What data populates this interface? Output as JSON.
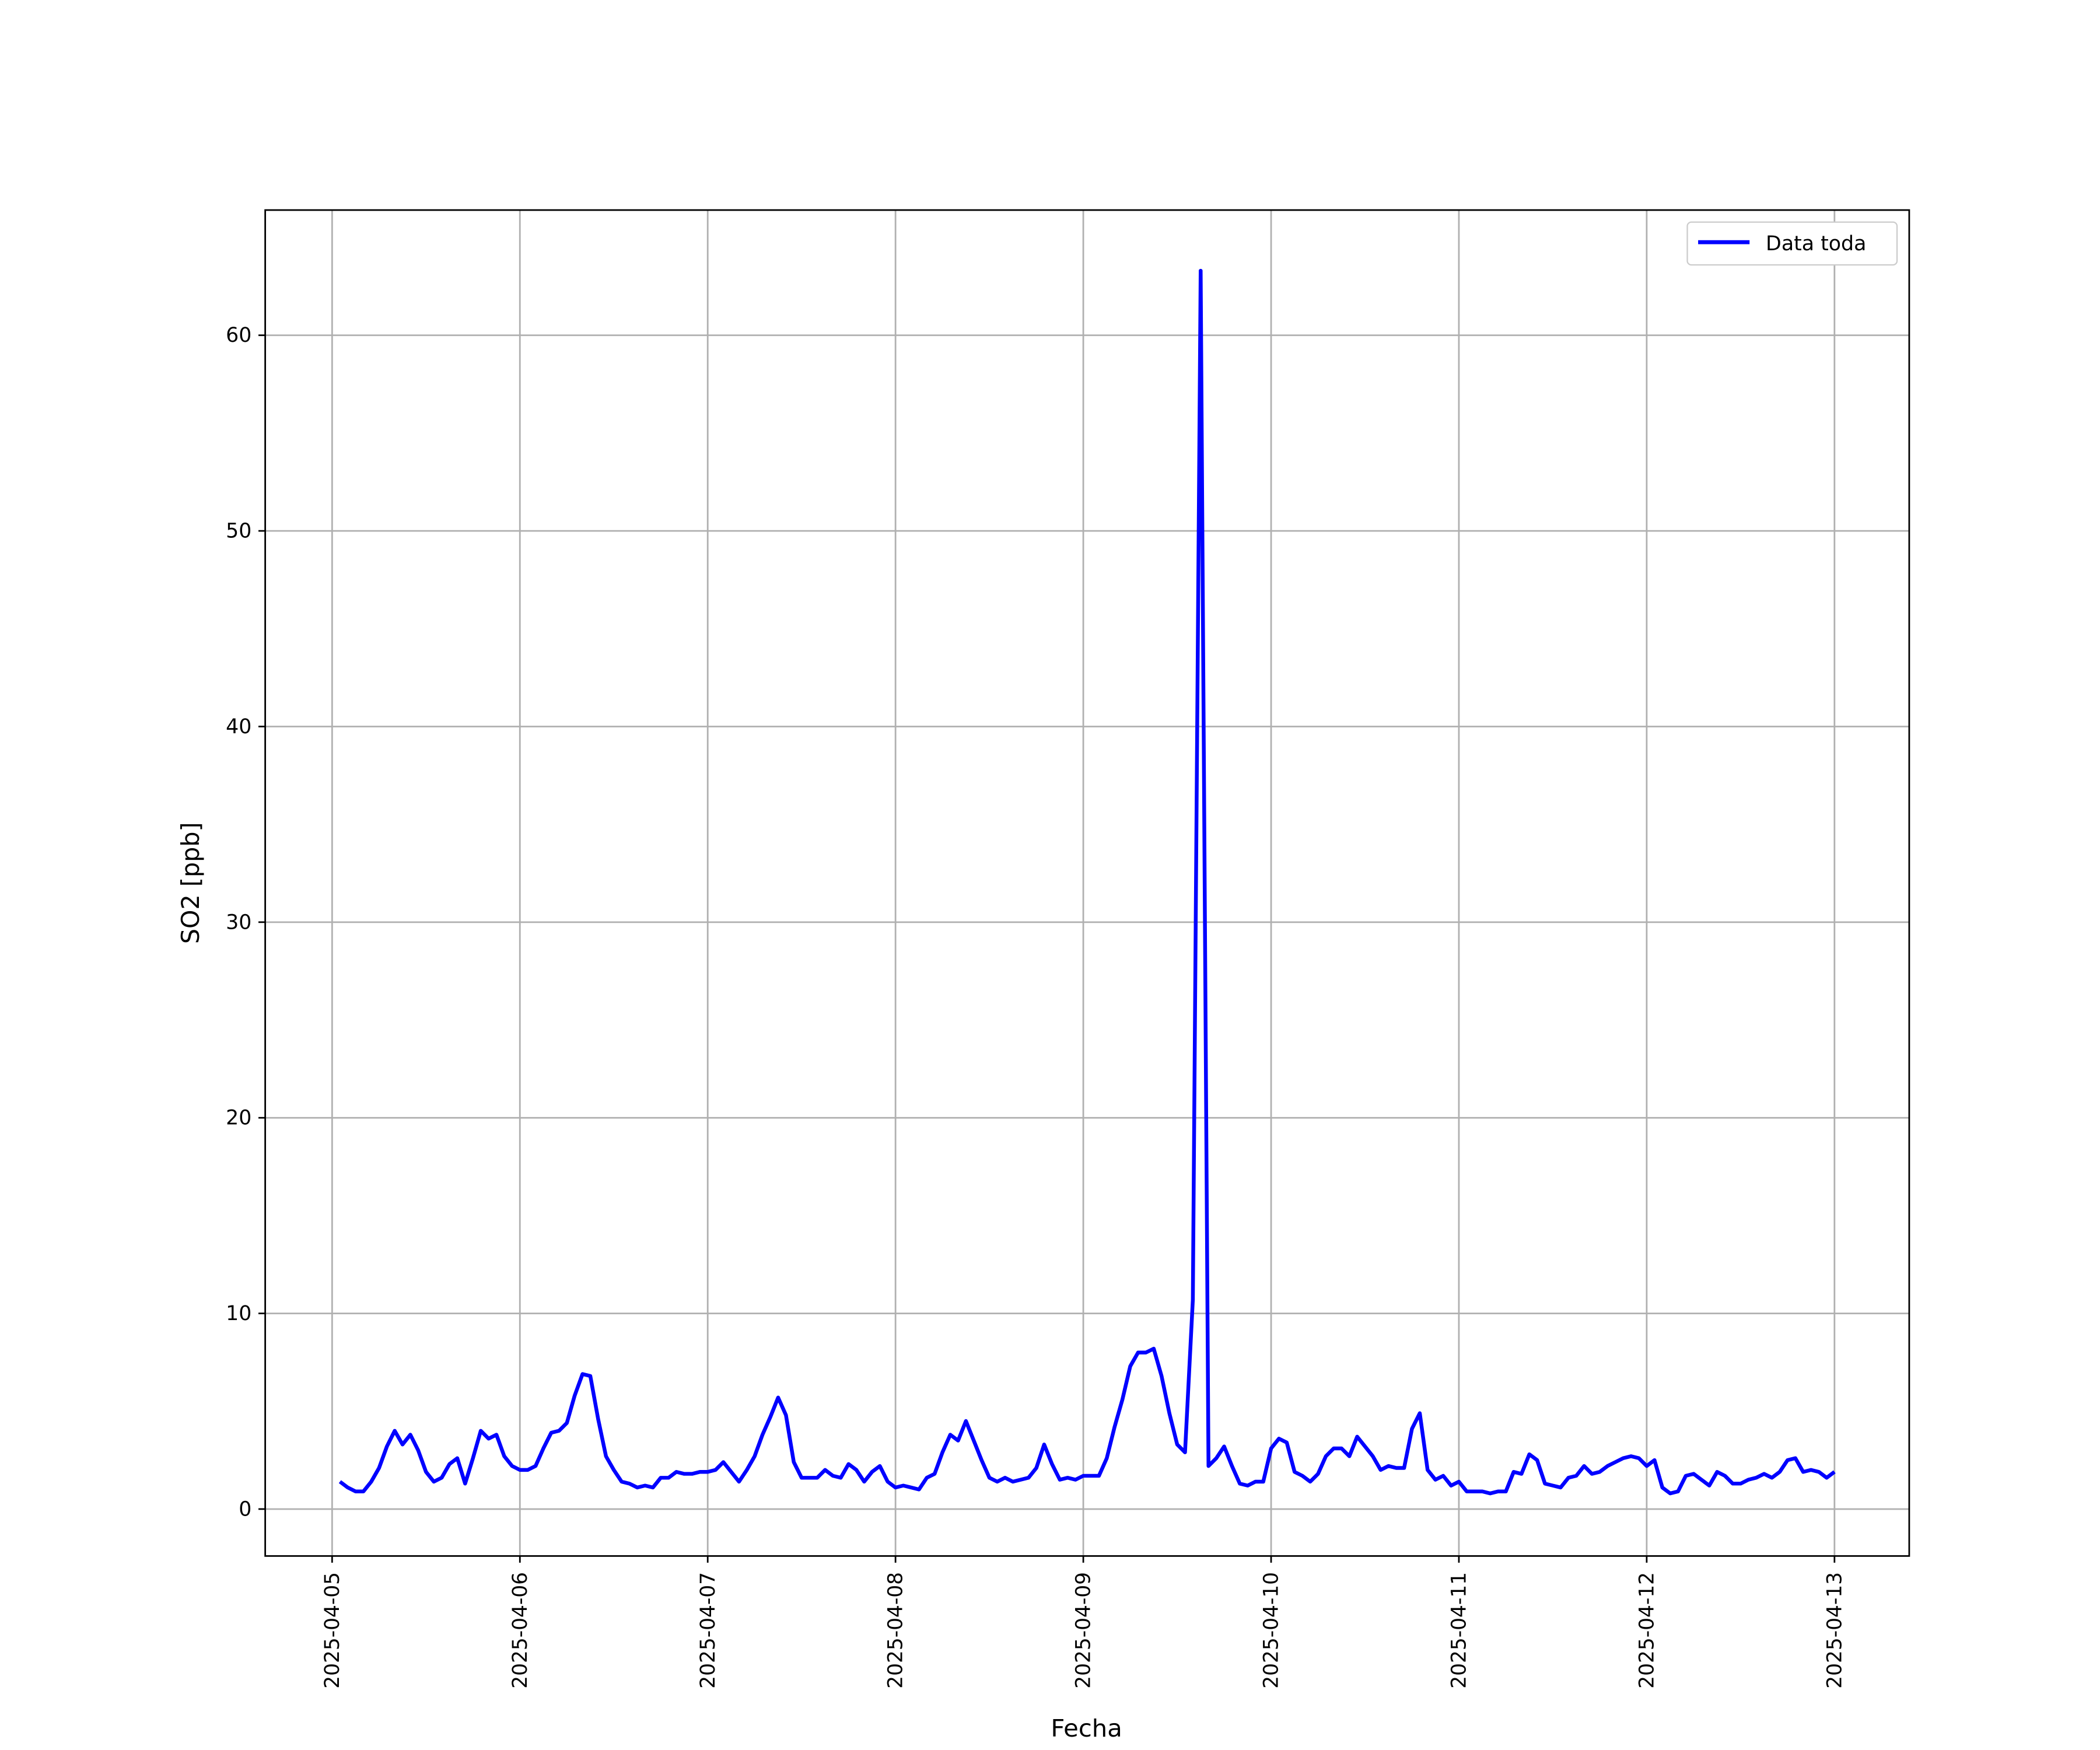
{
  "chart_data": {
    "type": "line",
    "xlabel": "Fecha",
    "ylabel": "SO2 [ppb]",
    "x": [
      "2025-04-05 01:00",
      "2025-04-05 02:00",
      "2025-04-05 03:00",
      "2025-04-05 04:00",
      "2025-04-05 05:00",
      "2025-04-05 06:00",
      "2025-04-05 07:00",
      "2025-04-05 08:00",
      "2025-04-05 09:00",
      "2025-04-05 10:00",
      "2025-04-05 11:00",
      "2025-04-05 12:00",
      "2025-04-05 13:00",
      "2025-04-05 14:00",
      "2025-04-05 15:00",
      "2025-04-05 16:00",
      "2025-04-05 17:00",
      "2025-04-05 18:00",
      "2025-04-05 19:00",
      "2025-04-05 20:00",
      "2025-04-05 21:00",
      "2025-04-05 22:00",
      "2025-04-05 23:00",
      "2025-04-06 00:00",
      "2025-04-06 01:00",
      "2025-04-06 02:00",
      "2025-04-06 03:00",
      "2025-04-06 04:00",
      "2025-04-06 05:00",
      "2025-04-06 06:00",
      "2025-04-06 07:00",
      "2025-04-06 08:00",
      "2025-04-06 09:00",
      "2025-04-06 10:00",
      "2025-04-06 11:00",
      "2025-04-06 12:00",
      "2025-04-06 13:00",
      "2025-04-06 14:00",
      "2025-04-06 15:00",
      "2025-04-06 16:00",
      "2025-04-06 17:00",
      "2025-04-06 18:00",
      "2025-04-06 19:00",
      "2025-04-06 20:00",
      "2025-04-06 21:00",
      "2025-04-06 22:00",
      "2025-04-06 23:00",
      "2025-04-07 00:00",
      "2025-04-07 01:00",
      "2025-04-07 02:00",
      "2025-04-07 03:00",
      "2025-04-07 04:00",
      "2025-04-07 05:00",
      "2025-04-07 06:00",
      "2025-04-07 07:00",
      "2025-04-07 08:00",
      "2025-04-07 09:00",
      "2025-04-07 10:00",
      "2025-04-07 11:00",
      "2025-04-07 12:00",
      "2025-04-07 13:00",
      "2025-04-07 14:00",
      "2025-04-07 15:00",
      "2025-04-07 16:00",
      "2025-04-07 17:00",
      "2025-04-07 18:00",
      "2025-04-07 19:00",
      "2025-04-07 20:00",
      "2025-04-07 21:00",
      "2025-04-07 22:00",
      "2025-04-07 23:00",
      "2025-04-08 00:00",
      "2025-04-08 01:00",
      "2025-04-08 02:00",
      "2025-04-08 03:00",
      "2025-04-08 04:00",
      "2025-04-08 05:00",
      "2025-04-08 06:00",
      "2025-04-08 07:00",
      "2025-04-08 08:00",
      "2025-04-08 09:00",
      "2025-04-08 10:00",
      "2025-04-08 11:00",
      "2025-04-08 12:00",
      "2025-04-08 13:00",
      "2025-04-08 14:00",
      "2025-04-08 15:00",
      "2025-04-08 16:00",
      "2025-04-08 17:00",
      "2025-04-08 18:00",
      "2025-04-08 19:00",
      "2025-04-08 20:00",
      "2025-04-08 21:00",
      "2025-04-08 22:00",
      "2025-04-08 23:00",
      "2025-04-09 00:00",
      "2025-04-09 01:00",
      "2025-04-09 02:00",
      "2025-04-09 03:00",
      "2025-04-09 04:00",
      "2025-04-09 05:00",
      "2025-04-09 06:00",
      "2025-04-09 07:00",
      "2025-04-09 08:00",
      "2025-04-09 09:00",
      "2025-04-09 10:00",
      "2025-04-09 11:00",
      "2025-04-09 12:00",
      "2025-04-09 13:00",
      "2025-04-09 14:00",
      "2025-04-09 15:00",
      "2025-04-09 16:00",
      "2025-04-09 17:00",
      "2025-04-09 18:00",
      "2025-04-09 19:00",
      "2025-04-09 20:00",
      "2025-04-09 21:00",
      "2025-04-09 22:00",
      "2025-04-09 23:00",
      "2025-04-10 00:00",
      "2025-04-10 01:00",
      "2025-04-10 02:00",
      "2025-04-10 03:00",
      "2025-04-10 04:00",
      "2025-04-10 05:00",
      "2025-04-10 06:00",
      "2025-04-10 07:00",
      "2025-04-10 08:00",
      "2025-04-10 09:00",
      "2025-04-10 10:00",
      "2025-04-10 11:00",
      "2025-04-10 12:00",
      "2025-04-10 13:00",
      "2025-04-10 14:00",
      "2025-04-10 15:00",
      "2025-04-10 16:00",
      "2025-04-10 17:00",
      "2025-04-10 18:00",
      "2025-04-10 19:00",
      "2025-04-10 20:00",
      "2025-04-10 21:00",
      "2025-04-10 22:00",
      "2025-04-10 23:00",
      "2025-04-11 00:00",
      "2025-04-11 01:00",
      "2025-04-11 02:00",
      "2025-04-11 03:00",
      "2025-04-11 04:00",
      "2025-04-11 05:00",
      "2025-04-11 06:00",
      "2025-04-11 07:00",
      "2025-04-11 08:00",
      "2025-04-11 09:00",
      "2025-04-11 10:00",
      "2025-04-11 11:00",
      "2025-04-11 12:00",
      "2025-04-11 13:00",
      "2025-04-11 14:00",
      "2025-04-11 15:00",
      "2025-04-11 16:00",
      "2025-04-11 17:00",
      "2025-04-11 18:00",
      "2025-04-11 19:00",
      "2025-04-11 20:00",
      "2025-04-11 21:00",
      "2025-04-11 22:00",
      "2025-04-11 23:00",
      "2025-04-12 00:00",
      "2025-04-12 01:00",
      "2025-04-12 02:00",
      "2025-04-12 03:00",
      "2025-04-12 04:00",
      "2025-04-12 05:00",
      "2025-04-12 06:00",
      "2025-04-12 07:00",
      "2025-04-12 08:00",
      "2025-04-12 09:00",
      "2025-04-12 10:00",
      "2025-04-12 11:00",
      "2025-04-12 12:00",
      "2025-04-12 13:00",
      "2025-04-12 14:00",
      "2025-04-12 15:00",
      "2025-04-12 16:00",
      "2025-04-12 17:00",
      "2025-04-12 18:00",
      "2025-04-12 19:00",
      "2025-04-12 20:00",
      "2025-04-12 21:00",
      "2025-04-12 22:00",
      "2025-04-12 23:00",
      "2025-04-13 00:00"
    ],
    "series": [
      {
        "name": "Data toda",
        "color": "#0000ff",
        "values": [
          1.4,
          1.1,
          0.9,
          0.9,
          1.4,
          2.1,
          3.2,
          4.0,
          3.3,
          3.8,
          3.0,
          1.9,
          1.4,
          1.6,
          2.3,
          2.6,
          1.3,
          2.6,
          4.0,
          3.6,
          3.8,
          2.7,
          2.2,
          2.0,
          2.0,
          2.2,
          3.1,
          3.9,
          4.0,
          4.4,
          5.8,
          6.9,
          6.8,
          4.6,
          2.7,
          2.0,
          1.4,
          1.3,
          1.1,
          1.2,
          1.1,
          1.6,
          1.6,
          1.9,
          1.8,
          1.8,
          1.9,
          1.9,
          2.0,
          2.4,
          1.9,
          1.4,
          2.0,
          2.7,
          3.8,
          4.7,
          5.7,
          4.8,
          2.4,
          1.6,
          1.6,
          1.6,
          2.0,
          1.7,
          1.6,
          2.3,
          2.0,
          1.4,
          1.9,
          2.2,
          1.4,
          1.1,
          1.2,
          1.1,
          1.0,
          1.6,
          1.8,
          2.9,
          3.8,
          3.5,
          4.5,
          3.5,
          2.5,
          1.6,
          1.4,
          1.6,
          1.4,
          1.5,
          1.6,
          2.1,
          3.3,
          2.3,
          1.5,
          1.6,
          1.5,
          1.7,
          1.7,
          1.7,
          2.6,
          4.2,
          5.6,
          7.3,
          8.0,
          8.0,
          8.2,
          6.8,
          4.9,
          3.3,
          2.9,
          10.7,
          63.3,
          2.2,
          2.6,
          3.2,
          2.2,
          1.3,
          1.2,
          1.4,
          1.4,
          3.1,
          3.6,
          3.4,
          1.9,
          1.7,
          1.4,
          1.8,
          2.7,
          3.1,
          3.1,
          2.7,
          3.7,
          3.2,
          2.7,
          2.0,
          2.2,
          2.1,
          2.1,
          4.1,
          4.9,
          2.0,
          1.5,
          1.7,
          1.2,
          1.4,
          0.9,
          0.9,
          0.9,
          0.8,
          0.9,
          0.9,
          1.9,
          1.8,
          2.8,
          2.5,
          1.3,
          1.2,
          1.1,
          1.6,
          1.7,
          2.2,
          1.8,
          1.9,
          2.2,
          2.4,
          2.6,
          2.7,
          2.6,
          2.2,
          2.5,
          1.1,
          0.8,
          0.9,
          1.7,
          1.8,
          1.5,
          1.2,
          1.9,
          1.7,
          1.3,
          1.3,
          1.5,
          1.6,
          1.8,
          1.6,
          1.9,
          2.5,
          2.6,
          1.9,
          2.0,
          1.9,
          1.6,
          1.9
        ]
      }
    ],
    "xlim": [
      "2025-04-04 15:27",
      "2025-04-13 09:33"
    ],
    "xticks": [
      "2025-04-05",
      "2025-04-06",
      "2025-04-07",
      "2025-04-08",
      "2025-04-09",
      "2025-04-10",
      "2025-04-11",
      "2025-04-12",
      "2025-04-13"
    ],
    "ylim": [
      -2.4,
      66.4
    ],
    "yticks": [
      0,
      10,
      20,
      30,
      40,
      50,
      60
    ],
    "grid": true,
    "legend": "upper right"
  }
}
